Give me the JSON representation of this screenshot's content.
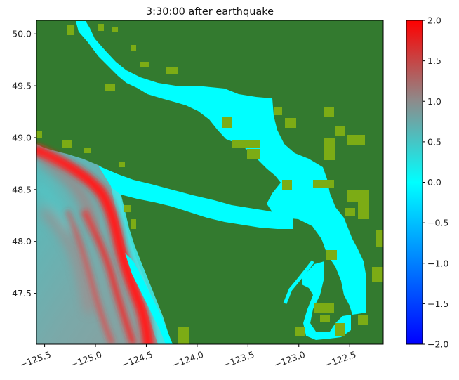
{
  "title": "3:30:00 after earthquake",
  "map": {
    "type": "heatmap",
    "land_color": "#337a2f",
    "lowland_color": "#7cac15",
    "water_color": "#00ffff",
    "x_axis": {
      "range": [
        -125.58,
        -122.17
      ],
      "ticks": [
        -125.5,
        -125.0,
        -124.5,
        -124.0,
        -123.5,
        -123.0,
        -122.5
      ],
      "tick_labels": [
        "−125.5",
        "−125.0",
        "−124.5",
        "−124.0",
        "−123.5",
        "−123.0",
        "−122.5"
      ]
    },
    "y_axis": {
      "range": [
        47.01,
        50.13
      ],
      "ticks": [
        47.5,
        48.0,
        48.5,
        49.0,
        49.5,
        50.0
      ],
      "tick_labels": [
        "47.5",
        "48.0",
        "48.5",
        "49.0",
        "49.5",
        "50.0"
      ]
    }
  },
  "colorbar": {
    "range": [
      -2.0,
      2.0
    ],
    "stops": [
      "#0000ff",
      "#00ffff",
      "#8c8c8c",
      "#ff0000"
    ],
    "ticks": [
      -2.0,
      -1.5,
      -1.0,
      -0.5,
      0.0,
      0.5,
      1.0,
      1.5,
      2.0
    ],
    "tick_labels": [
      "−2.0",
      "−1.5",
      "−1.0",
      "−0.5",
      "0.0",
      "0.5",
      "1.0",
      "1.5",
      "2.0"
    ]
  }
}
